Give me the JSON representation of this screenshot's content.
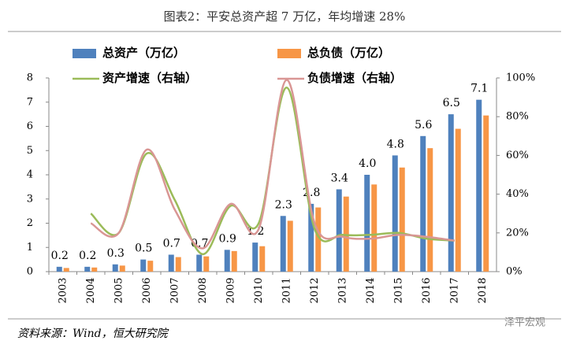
{
  "chart_data": {
    "type": "bar",
    "title": "图表2：平安总资产超 7 万亿，年均增速 28%",
    "source": "资料来源：Wind，恒大研究院",
    "watermark": "泽平宏观",
    "categories": [
      "2003",
      "2004",
      "2005",
      "2006",
      "2007",
      "2008",
      "2009",
      "2010",
      "2011",
      "2012",
      "2013",
      "2014",
      "2015",
      "2016",
      "2017",
      "2018"
    ],
    "series": [
      {
        "name": "总资产（万亿）",
        "type": "bar",
        "color": "#4f81bd",
        "values": [
          0.2,
          0.2,
          0.3,
          0.5,
          0.7,
          0.7,
          0.9,
          1.2,
          2.3,
          2.8,
          3.4,
          4.0,
          4.8,
          5.6,
          6.5,
          7.1
        ],
        "value_labels": [
          "0.2",
          "0.2",
          "0.3",
          "0.5",
          "0.7",
          "0.7",
          "0.9",
          "1.2",
          "2.3",
          "2.8",
          "3.4",
          "4.0",
          "4.8",
          "5.6",
          "6.5",
          "7.1"
        ]
      },
      {
        "name": "总负债（万亿）",
        "type": "bar",
        "color": "#f79646",
        "values": [
          0.15,
          0.17,
          0.25,
          0.45,
          0.6,
          0.63,
          0.85,
          1.05,
          2.1,
          2.65,
          3.1,
          3.6,
          4.3,
          5.1,
          5.9,
          6.45
        ]
      },
      {
        "name": "资产增速（右轴）",
        "type": "line",
        "axis": "y2",
        "color": "#9bbb59",
        "values": [
          null,
          30,
          20,
          61,
          37,
          9,
          34,
          25,
          95,
          22,
          19,
          19,
          20,
          17,
          16,
          null
        ]
      },
      {
        "name": "负债增速（右轴）",
        "type": "line",
        "axis": "y2",
        "color": "#d99694",
        "values": [
          null,
          25,
          20,
          63,
          32,
          12,
          35,
          22,
          99,
          25,
          18,
          17,
          19,
          18,
          16,
          null
        ]
      }
    ],
    "ylim": [
      0,
      8
    ],
    "yticks": [
      0,
      1,
      2,
      3,
      4,
      5,
      6,
      7,
      8
    ],
    "y2lim": [
      0,
      100
    ],
    "y2ticks": [
      {
        "value": 0,
        "label": "0%"
      },
      {
        "value": 20,
        "label": "20%"
      },
      {
        "value": 40,
        "label": "40%"
      },
      {
        "value": 60,
        "label": "60%"
      },
      {
        "value": 80,
        "label": "80%"
      },
      {
        "value": 100,
        "label": "100%"
      }
    ]
  }
}
